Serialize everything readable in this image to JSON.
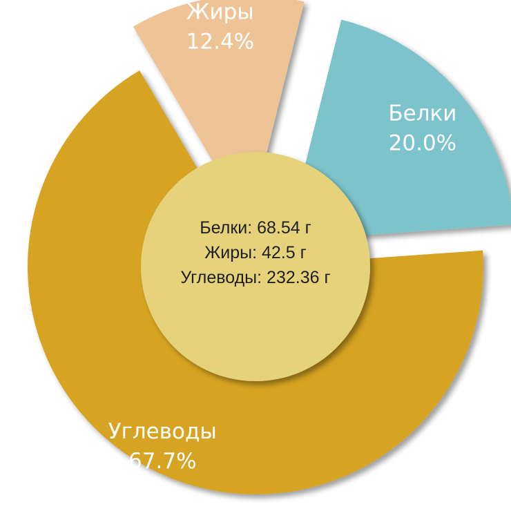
{
  "chart_data": {
    "type": "pie",
    "style": "exploded-donut",
    "segments": [
      {
        "name": "Белки",
        "percent_label": "20.0%",
        "value": 20.0,
        "color": "#7cc3cc"
      },
      {
        "name": "Углеводы",
        "percent_label": "67.7%",
        "value": 67.7,
        "color": "#d6a424"
      },
      {
        "name": "Жиры",
        "percent_label": "12.4%",
        "value": 12.4,
        "color": "#eec497"
      }
    ],
    "center": {
      "color": "#e6d27a",
      "lines": [
        "Белки: 68.54 г",
        "Жиры: 42.5 г",
        "Углеводы: 232.36 г"
      ]
    }
  }
}
